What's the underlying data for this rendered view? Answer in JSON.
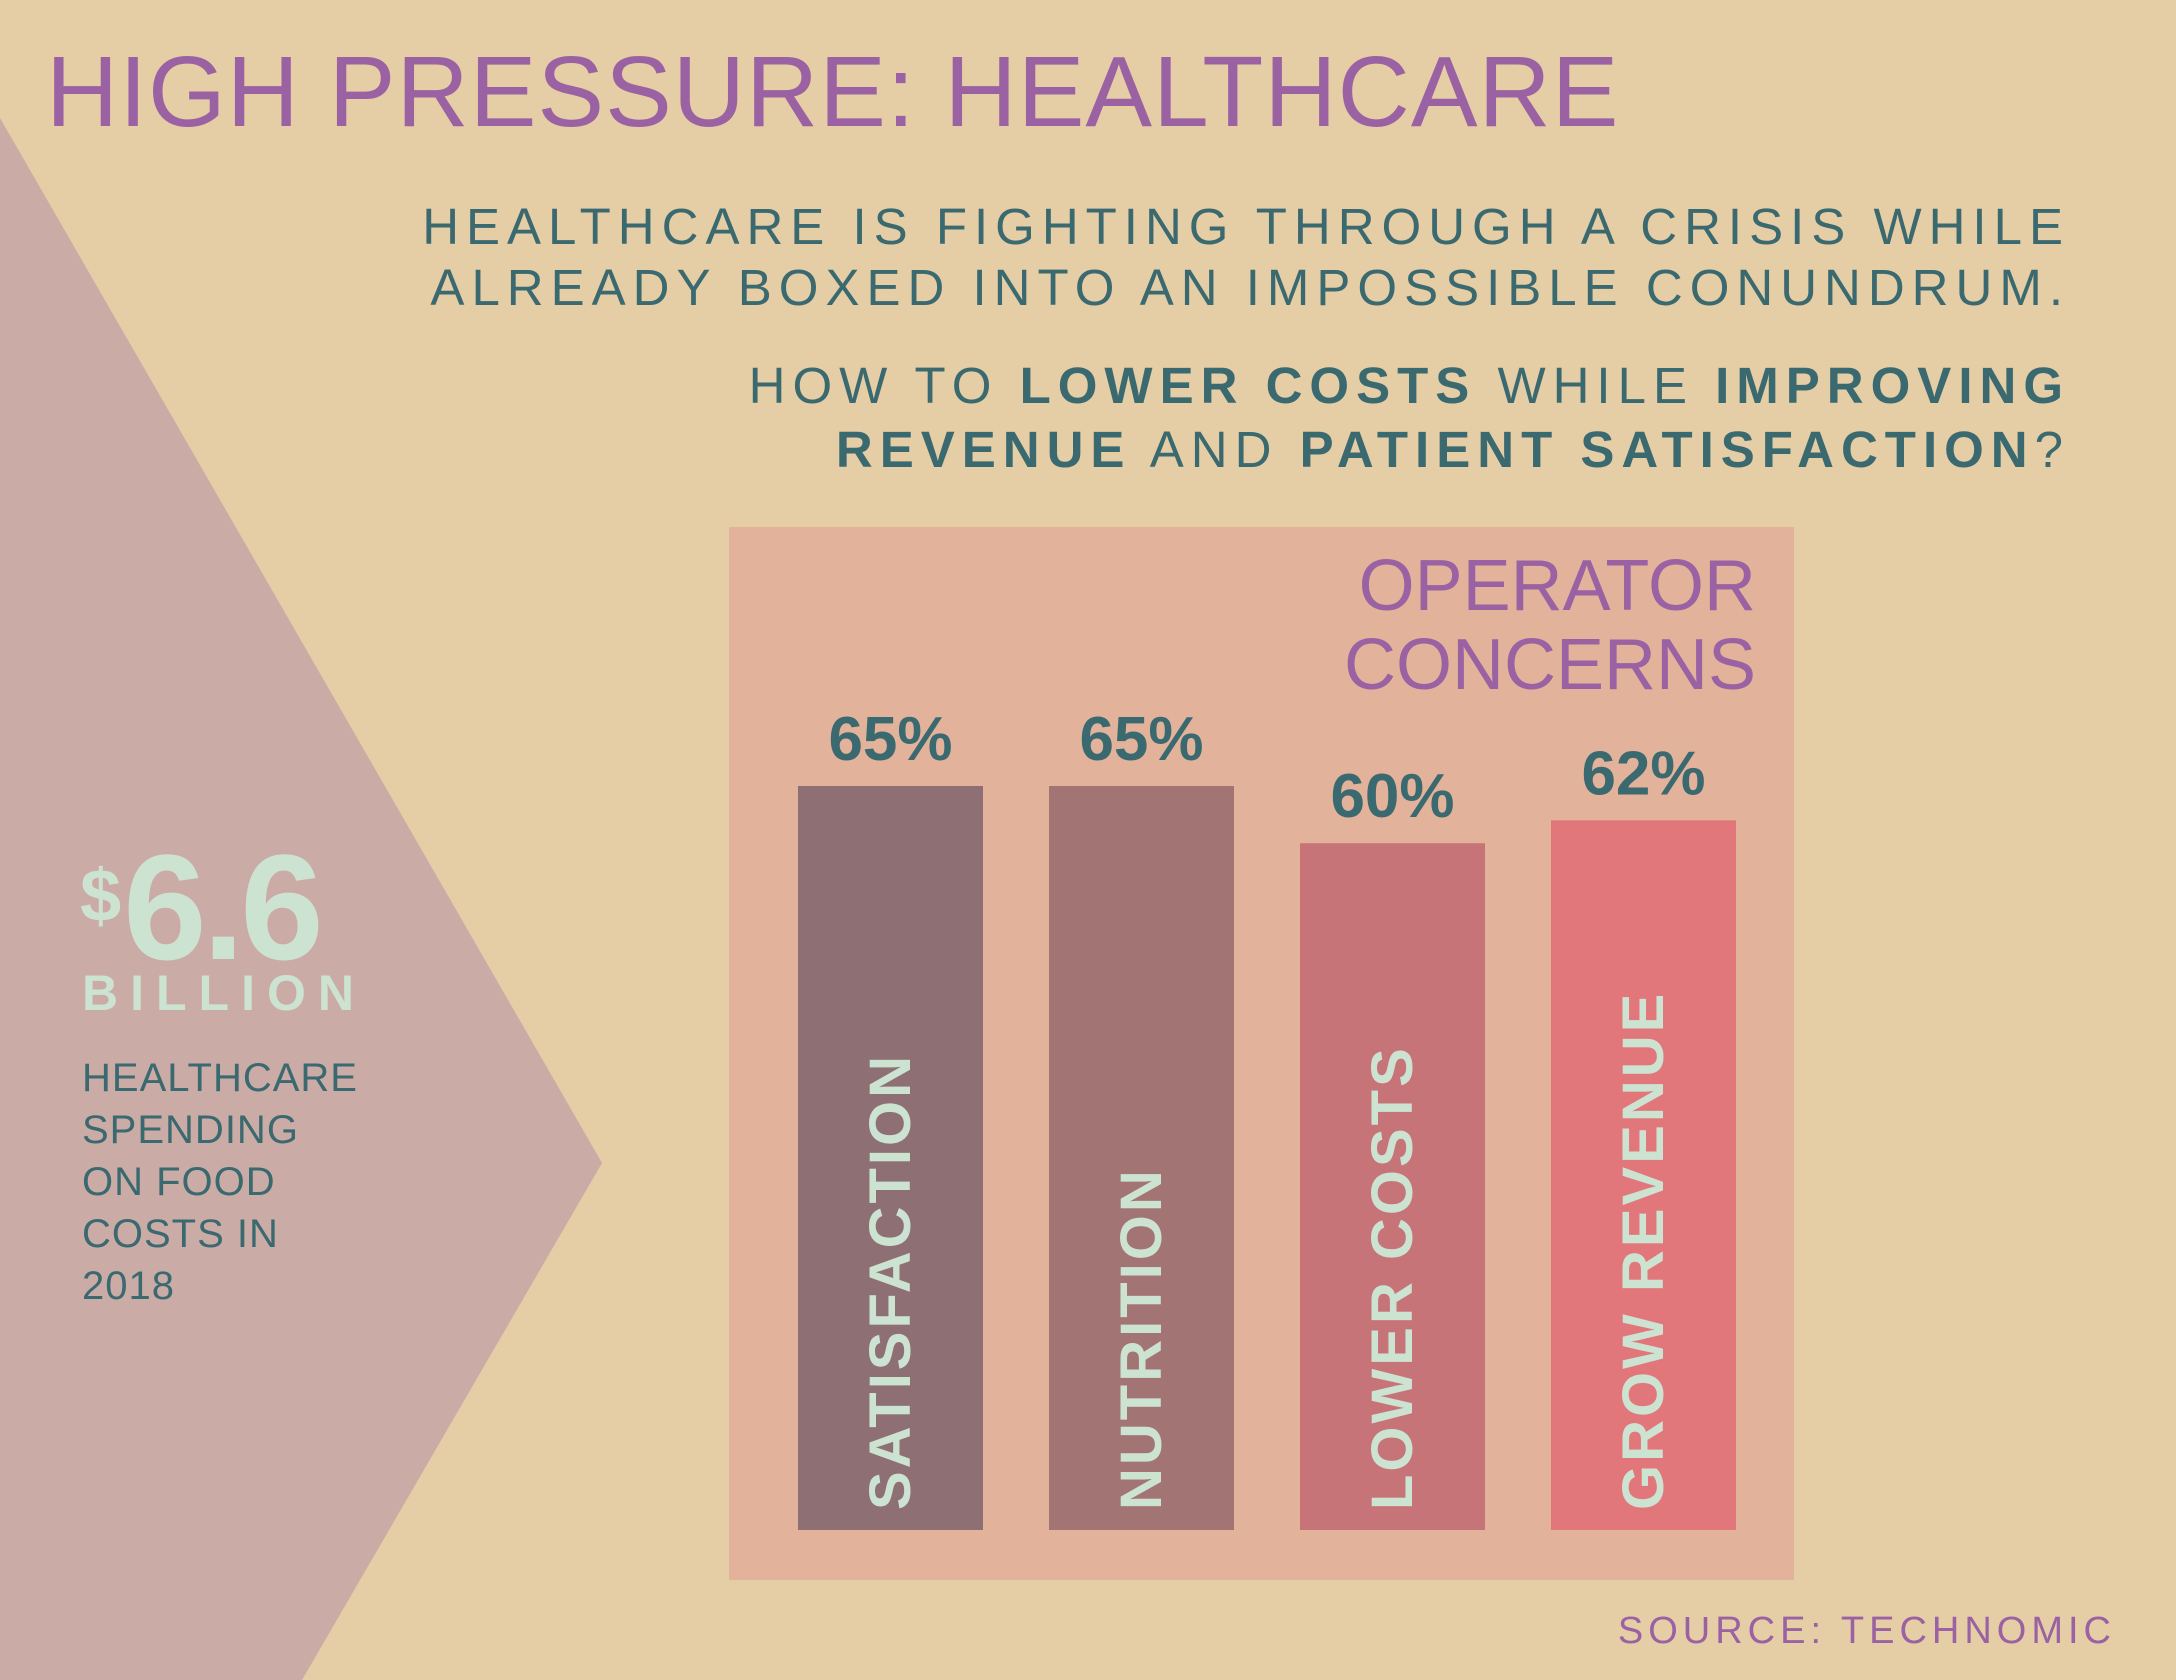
{
  "colors": {
    "background": "#e5cda5",
    "arrow": "#cbaba6",
    "panel": "#e2b39a",
    "title": "#9b62a3",
    "teal": "#3b6970",
    "mint": "#cde3d2"
  },
  "header": {
    "title": "HIGH PRESSURE: HEALTHCARE",
    "subtitle_line1": "HEALTHCARE IS FIGHTING THROUGH A CRISIS WHILE",
    "subtitle_line2": "ALREADY BOXED INTO AN IMPOSSIBLE CONUNDRUM.",
    "question": {
      "p1": "HOW TO ",
      "b1": "LOWER COSTS",
      "p2": " WHILE ",
      "b2": "IMPROVING",
      "b3": "REVENUE",
      "p3": " AND ",
      "b4": "PATIENT SATISFACTION",
      "p4": "?"
    }
  },
  "stat": {
    "currency": "$",
    "value": "6.6",
    "unit": "BILLION",
    "description_lines": [
      "HEALTHCARE",
      "SPENDING",
      "ON FOOD",
      "COSTS IN",
      "2018"
    ]
  },
  "chart_data": {
    "type": "bar",
    "title": "OPERATOR CONCERNS",
    "title_lines": [
      "OPERATOR",
      "CONCERNS"
    ],
    "categories": [
      "SATISFACTION",
      "NUTRITION",
      "LOWER COSTS",
      "GROW REVENUE"
    ],
    "values": [
      65,
      65,
      60,
      62
    ],
    "value_labels": [
      "65%",
      "65%",
      "60%",
      "62%"
    ],
    "bar_colors": [
      "#8e7074",
      "#a27474",
      "#c77479",
      "#e2777b"
    ],
    "value_label_color": "#3b6970",
    "category_label_color": "#cde3d2",
    "ylim": [
      0,
      65
    ],
    "grid": false,
    "legend": "none"
  },
  "footer": {
    "source": "SOURCE: TECHNOMIC"
  }
}
